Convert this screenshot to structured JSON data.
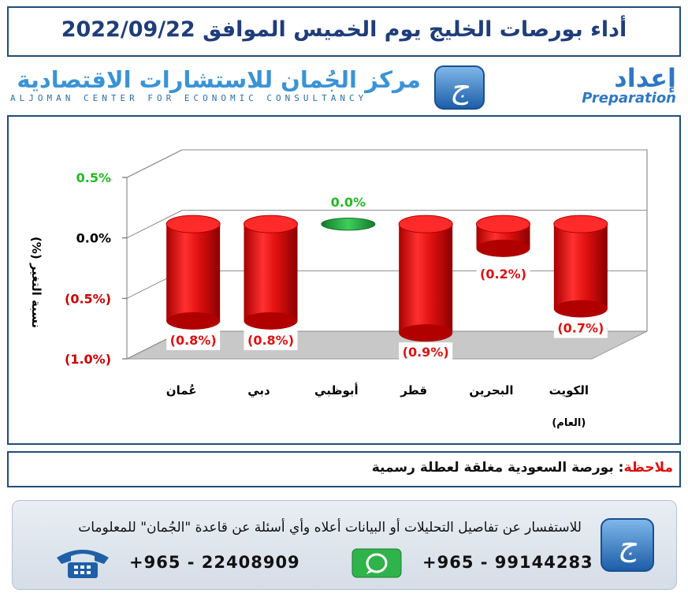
{
  "header": {
    "title": "أداء بورصات الخليج يوم الخميس الموافق 2022/09/22"
  },
  "banner": {
    "brand_name_ar": "مركز الجُمان للاستشارات الاقتصادية",
    "brand_name_en": "ALJOMAN CENTER FOR ECONOMIC CONSULTANCY",
    "preparation_ar": "إعداد",
    "preparation_en": "Preparation",
    "logo_glyph": "ج",
    "logo_icon": "aljoman-logo-icon"
  },
  "chart_data": {
    "type": "bar",
    "title": "",
    "ylabel": "نسبة التغير (%)",
    "xlabel": "",
    "ylim": [
      -1.0,
      0.5
    ],
    "y_ticks": [
      0.5,
      0.0,
      -0.5,
      -1.0
    ],
    "y_tick_labels": [
      "0.5%",
      "0.0%",
      "(0.5%)",
      "(1.0%)"
    ],
    "y_tick_colors": [
      "#22bb22",
      "#000000",
      "#cc0000",
      "#cc0000"
    ],
    "categories": [
      "الكويت (العام)",
      "البحرين",
      "قطر",
      "أبوظبي",
      "دبي",
      "عُمان"
    ],
    "category_lines": [
      [
        "الكويت",
        "(العام)"
      ],
      [
        "البحرين"
      ],
      [
        "قطر"
      ],
      [
        "أبوظبي"
      ],
      [
        "دبي"
      ],
      [
        "عُمان"
      ]
    ],
    "values": [
      -0.7,
      -0.2,
      -0.9,
      0.0,
      -0.8,
      -0.8
    ],
    "data_labels": [
      "(0.7%)",
      "(0.2%)",
      "(0.9%)",
      "0.0%",
      "(0.8%)",
      "(0.8%)"
    ],
    "negative_color": "#e01010",
    "positive_color": "#22bb22",
    "zero_color": "#1e9e3a",
    "grid": true,
    "legend": "none"
  },
  "note": {
    "label": "ملاحظة",
    "text": "بورصة السعودية مغلقة لعطلة رسمية"
  },
  "footer": {
    "text": "للاستفسار عن تفاصيل التحليلات أو البيانات أعلاه وأي أسئلة عن قاعدة \"الجُمان\" للمعلومات",
    "phone_whatsapp": "+965 - 99144283",
    "phone_landline": "+965 - 22408909",
    "icons": [
      "aljoman-logo-icon",
      "whatsapp-icon",
      "telephone-icon"
    ]
  },
  "colors": {
    "frame": "#1f4e79",
    "title": "#1f3d7a",
    "brand": "#3a93d6"
  }
}
